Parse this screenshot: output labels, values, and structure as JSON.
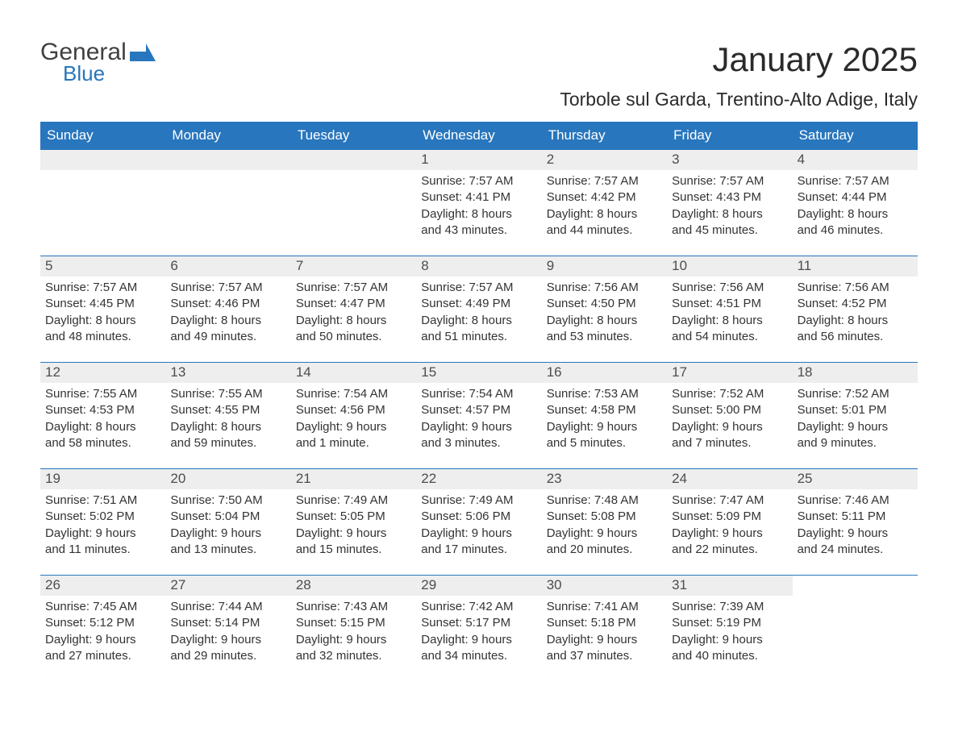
{
  "logo": {
    "text_general": "General",
    "text_blue": "Blue",
    "general_color": "#404040",
    "blue_color": "#2876bd",
    "icon_color": "#2876bd"
  },
  "header": {
    "title": "January 2025",
    "location": "Torbole sul Garda, Trentino-Alto Adige, Italy",
    "title_fontsize": 42,
    "subtitle_fontsize": 23,
    "text_color": "#2a2a2a"
  },
  "colors": {
    "header_bg": "#2876bd",
    "header_text": "#ffffff",
    "row_divider": "#2876bd",
    "daynum_band_bg": "#eeeeee",
    "daynum_text": "#4d4d4d",
    "body_text": "#333333",
    "page_bg": "#ffffff"
  },
  "typography": {
    "font_family": "Arial, Helvetica, sans-serif",
    "dow_fontsize": 17,
    "daynum_fontsize": 17,
    "info_fontsize": 15
  },
  "layout": {
    "columns": 7,
    "rows": 5,
    "week_row_min_height": 132
  },
  "days_of_week": [
    "Sunday",
    "Monday",
    "Tuesday",
    "Wednesday",
    "Thursday",
    "Friday",
    "Saturday"
  ],
  "weeks": [
    [
      {
        "blank": true
      },
      {
        "blank": true
      },
      {
        "blank": true
      },
      {
        "daynum": "1",
        "sunrise": "Sunrise: 7:57 AM",
        "sunset": "Sunset: 4:41 PM",
        "daylight1": "Daylight: 8 hours",
        "daylight2": "and 43 minutes."
      },
      {
        "daynum": "2",
        "sunrise": "Sunrise: 7:57 AM",
        "sunset": "Sunset: 4:42 PM",
        "daylight1": "Daylight: 8 hours",
        "daylight2": "and 44 minutes."
      },
      {
        "daynum": "3",
        "sunrise": "Sunrise: 7:57 AM",
        "sunset": "Sunset: 4:43 PM",
        "daylight1": "Daylight: 8 hours",
        "daylight2": "and 45 minutes."
      },
      {
        "daynum": "4",
        "sunrise": "Sunrise: 7:57 AM",
        "sunset": "Sunset: 4:44 PM",
        "daylight1": "Daylight: 8 hours",
        "daylight2": "and 46 minutes."
      }
    ],
    [
      {
        "daynum": "5",
        "sunrise": "Sunrise: 7:57 AM",
        "sunset": "Sunset: 4:45 PM",
        "daylight1": "Daylight: 8 hours",
        "daylight2": "and 48 minutes."
      },
      {
        "daynum": "6",
        "sunrise": "Sunrise: 7:57 AM",
        "sunset": "Sunset: 4:46 PM",
        "daylight1": "Daylight: 8 hours",
        "daylight2": "and 49 minutes."
      },
      {
        "daynum": "7",
        "sunrise": "Sunrise: 7:57 AM",
        "sunset": "Sunset: 4:47 PM",
        "daylight1": "Daylight: 8 hours",
        "daylight2": "and 50 minutes."
      },
      {
        "daynum": "8",
        "sunrise": "Sunrise: 7:57 AM",
        "sunset": "Sunset: 4:49 PM",
        "daylight1": "Daylight: 8 hours",
        "daylight2": "and 51 minutes."
      },
      {
        "daynum": "9",
        "sunrise": "Sunrise: 7:56 AM",
        "sunset": "Sunset: 4:50 PM",
        "daylight1": "Daylight: 8 hours",
        "daylight2": "and 53 minutes."
      },
      {
        "daynum": "10",
        "sunrise": "Sunrise: 7:56 AM",
        "sunset": "Sunset: 4:51 PM",
        "daylight1": "Daylight: 8 hours",
        "daylight2": "and 54 minutes."
      },
      {
        "daynum": "11",
        "sunrise": "Sunrise: 7:56 AM",
        "sunset": "Sunset: 4:52 PM",
        "daylight1": "Daylight: 8 hours",
        "daylight2": "and 56 minutes."
      }
    ],
    [
      {
        "daynum": "12",
        "sunrise": "Sunrise: 7:55 AM",
        "sunset": "Sunset: 4:53 PM",
        "daylight1": "Daylight: 8 hours",
        "daylight2": "and 58 minutes."
      },
      {
        "daynum": "13",
        "sunrise": "Sunrise: 7:55 AM",
        "sunset": "Sunset: 4:55 PM",
        "daylight1": "Daylight: 8 hours",
        "daylight2": "and 59 minutes."
      },
      {
        "daynum": "14",
        "sunrise": "Sunrise: 7:54 AM",
        "sunset": "Sunset: 4:56 PM",
        "daylight1": "Daylight: 9 hours",
        "daylight2": "and 1 minute."
      },
      {
        "daynum": "15",
        "sunrise": "Sunrise: 7:54 AM",
        "sunset": "Sunset: 4:57 PM",
        "daylight1": "Daylight: 9 hours",
        "daylight2": "and 3 minutes."
      },
      {
        "daynum": "16",
        "sunrise": "Sunrise: 7:53 AM",
        "sunset": "Sunset: 4:58 PM",
        "daylight1": "Daylight: 9 hours",
        "daylight2": "and 5 minutes."
      },
      {
        "daynum": "17",
        "sunrise": "Sunrise: 7:52 AM",
        "sunset": "Sunset: 5:00 PM",
        "daylight1": "Daylight: 9 hours",
        "daylight2": "and 7 minutes."
      },
      {
        "daynum": "18",
        "sunrise": "Sunrise: 7:52 AM",
        "sunset": "Sunset: 5:01 PM",
        "daylight1": "Daylight: 9 hours",
        "daylight2": "and 9 minutes."
      }
    ],
    [
      {
        "daynum": "19",
        "sunrise": "Sunrise: 7:51 AM",
        "sunset": "Sunset: 5:02 PM",
        "daylight1": "Daylight: 9 hours",
        "daylight2": "and 11 minutes."
      },
      {
        "daynum": "20",
        "sunrise": "Sunrise: 7:50 AM",
        "sunset": "Sunset: 5:04 PM",
        "daylight1": "Daylight: 9 hours",
        "daylight2": "and 13 minutes."
      },
      {
        "daynum": "21",
        "sunrise": "Sunrise: 7:49 AM",
        "sunset": "Sunset: 5:05 PM",
        "daylight1": "Daylight: 9 hours",
        "daylight2": "and 15 minutes."
      },
      {
        "daynum": "22",
        "sunrise": "Sunrise: 7:49 AM",
        "sunset": "Sunset: 5:06 PM",
        "daylight1": "Daylight: 9 hours",
        "daylight2": "and 17 minutes."
      },
      {
        "daynum": "23",
        "sunrise": "Sunrise: 7:48 AM",
        "sunset": "Sunset: 5:08 PM",
        "daylight1": "Daylight: 9 hours",
        "daylight2": "and 20 minutes."
      },
      {
        "daynum": "24",
        "sunrise": "Sunrise: 7:47 AM",
        "sunset": "Sunset: 5:09 PM",
        "daylight1": "Daylight: 9 hours",
        "daylight2": "and 22 minutes."
      },
      {
        "daynum": "25",
        "sunrise": "Sunrise: 7:46 AM",
        "sunset": "Sunset: 5:11 PM",
        "daylight1": "Daylight: 9 hours",
        "daylight2": "and 24 minutes."
      }
    ],
    [
      {
        "daynum": "26",
        "sunrise": "Sunrise: 7:45 AM",
        "sunset": "Sunset: 5:12 PM",
        "daylight1": "Daylight: 9 hours",
        "daylight2": "and 27 minutes."
      },
      {
        "daynum": "27",
        "sunrise": "Sunrise: 7:44 AM",
        "sunset": "Sunset: 5:14 PM",
        "daylight1": "Daylight: 9 hours",
        "daylight2": "and 29 minutes."
      },
      {
        "daynum": "28",
        "sunrise": "Sunrise: 7:43 AM",
        "sunset": "Sunset: 5:15 PM",
        "daylight1": "Daylight: 9 hours",
        "daylight2": "and 32 minutes."
      },
      {
        "daynum": "29",
        "sunrise": "Sunrise: 7:42 AM",
        "sunset": "Sunset: 5:17 PM",
        "daylight1": "Daylight: 9 hours",
        "daylight2": "and 34 minutes."
      },
      {
        "daynum": "30",
        "sunrise": "Sunrise: 7:41 AM",
        "sunset": "Sunset: 5:18 PM",
        "daylight1": "Daylight: 9 hours",
        "daylight2": "and 37 minutes."
      },
      {
        "daynum": "31",
        "sunrise": "Sunrise: 7:39 AM",
        "sunset": "Sunset: 5:19 PM",
        "daylight1": "Daylight: 9 hours",
        "daylight2": "and 40 minutes."
      },
      {
        "blank": true
      }
    ]
  ]
}
